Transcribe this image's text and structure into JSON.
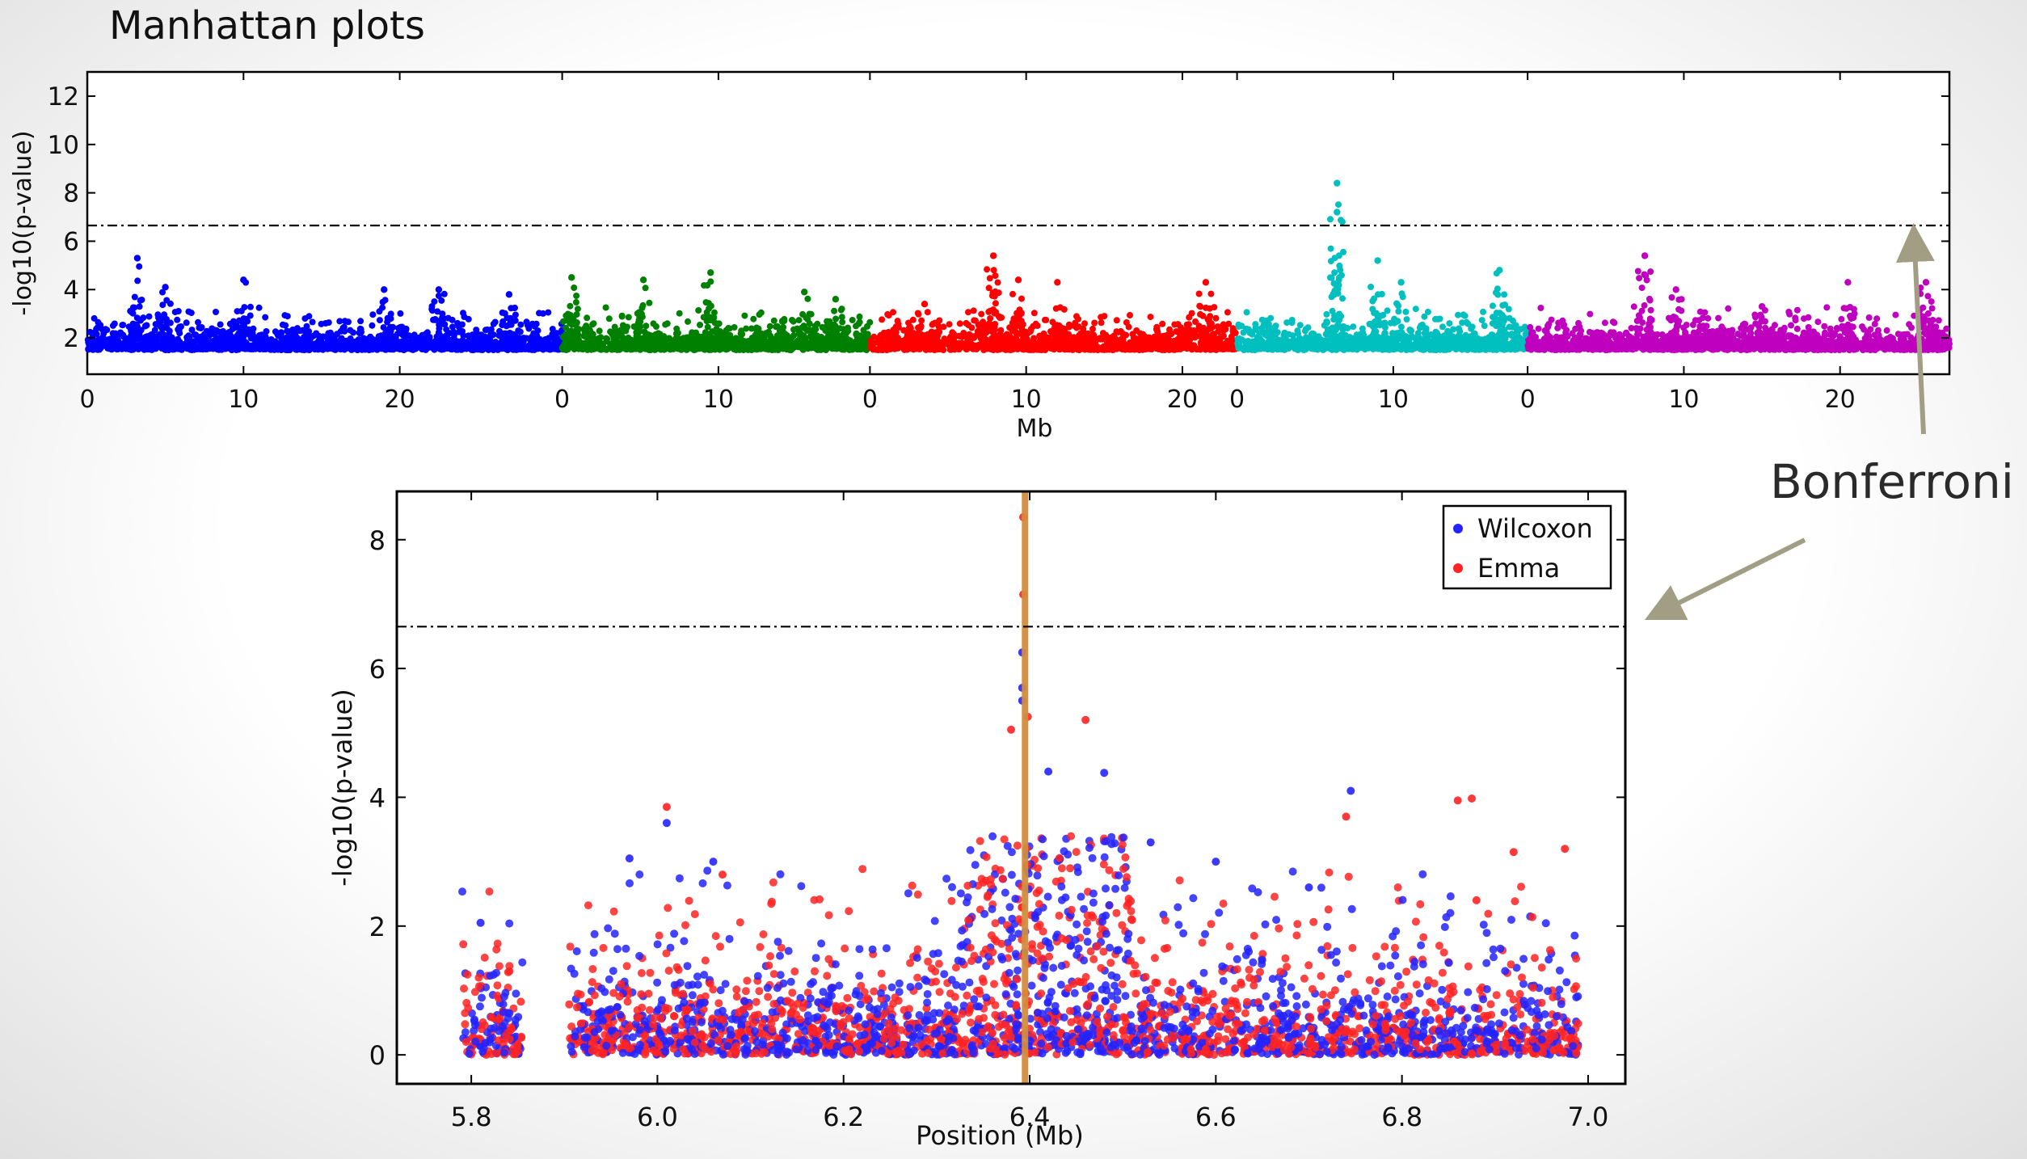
{
  "slide": {
    "title": "Manhattan plots",
    "callout_label": "Bonferroni",
    "callout_color": "#a19e84"
  },
  "chart_data": [
    {
      "type": "scatter",
      "title": "",
      "xlabel": "Mb",
      "ylabel": "-log10(p-value)",
      "ylim": [
        0.5,
        13
      ],
      "yticks": [
        2,
        4,
        6,
        8,
        10,
        12
      ],
      "grid": false,
      "threshold": 6.65,
      "chromosomes": [
        {
          "chromosome": 1,
          "color": "#0000ff",
          "length_mb": 30.4,
          "xticks": [
            0,
            10,
            20
          ],
          "peaks": [
            [
              3.2,
              5.3
            ],
            [
              5.0,
              4.1
            ],
            [
              10.0,
              4.4
            ],
            [
              19.0,
              4.0
            ],
            [
              22.5,
              4.0
            ],
            [
              27.0,
              3.8
            ]
          ]
        },
        {
          "chromosome": 2,
          "color": "#008000",
          "length_mb": 19.7,
          "xticks": [
            0,
            10
          ],
          "peaks": [
            [
              0.6,
              4.5
            ],
            [
              5.2,
              4.4
            ],
            [
              9.5,
              4.7
            ],
            [
              15.5,
              3.9
            ],
            [
              17.5,
              3.6
            ]
          ]
        },
        {
          "chromosome": 3,
          "color": "#ff0000",
          "length_mb": 23.5,
          "xticks": [
            0,
            10,
            20
          ],
          "peaks": [
            [
              7.9,
              5.4
            ],
            [
              9.5,
              4.4
            ],
            [
              12.0,
              4.3
            ],
            [
              21.5,
              4.3
            ],
            [
              3.5,
              3.4
            ]
          ]
        },
        {
          "chromosome": 4,
          "color": "#00bfbf",
          "length_mb": 18.6,
          "xticks": [
            0,
            10
          ],
          "peaks": [
            [
              6.4,
              8.4
            ],
            [
              6.4,
              7.2
            ],
            [
              9.0,
              5.2
            ],
            [
              10.5,
              4.3
            ],
            [
              16.8,
              4.8
            ]
          ]
        },
        {
          "chromosome": 5,
          "color": "#bf00bf",
          "length_mb": 27.0,
          "xticks": [
            0,
            10,
            20
          ],
          "peaks": [
            [
              7.5,
              5.4
            ],
            [
              9.5,
              4.0
            ],
            [
              20.5,
              4.3
            ],
            [
              25.5,
              4.3
            ],
            [
              15.0,
              3.3
            ]
          ]
        }
      ]
    },
    {
      "type": "scatter",
      "title": "",
      "xlabel": "Position (Mb)",
      "ylabel": "-log10(p-value)",
      "xlim": [
        5.72,
        7.04
      ],
      "ylim": [
        -0.45,
        8.75
      ],
      "xticks": [
        5.8,
        6.0,
        6.2,
        6.4,
        6.6,
        6.8,
        7.0
      ],
      "yticks": [
        0,
        2,
        4,
        6,
        8
      ],
      "grid": false,
      "legend_position": "top-right",
      "threshold": 6.65,
      "highlight_x": 6.395,
      "highlight_color": "#d28c3c",
      "series": [
        {
          "name": "Wilcoxon",
          "color": "#2323ff",
          "notable_points": [
            [
              6.392,
              6.25
            ],
            [
              6.392,
              5.7
            ],
            [
              6.392,
              5.5
            ],
            [
              6.42,
              4.4
            ],
            [
              6.48,
              4.38
            ],
            [
              6.745,
              4.1
            ],
            [
              6.7,
              2.6
            ],
            [
              6.6,
              3.0
            ],
            [
              6.53,
              3.3
            ],
            [
              6.01,
              3.6
            ],
            [
              5.97,
              3.05
            ],
            [
              6.06,
              3.0
            ],
            [
              5.81,
              2.05
            ]
          ]
        },
        {
          "name": "Emma",
          "color": "#ff2323",
          "notable_points": [
            [
              6.393,
              8.35
            ],
            [
              6.393,
              7.15
            ],
            [
              6.38,
              5.05
            ],
            [
              6.398,
              5.25
            ],
            [
              6.46,
              5.2
            ],
            [
              6.01,
              3.85
            ],
            [
              6.86,
              3.95
            ],
            [
              6.875,
              3.98
            ],
            [
              6.74,
              3.7
            ],
            [
              6.92,
              3.15
            ],
            [
              6.975,
              3.2
            ],
            [
              6.07,
              2.8
            ],
            [
              6.88,
              2.4
            ]
          ]
        }
      ]
    }
  ]
}
